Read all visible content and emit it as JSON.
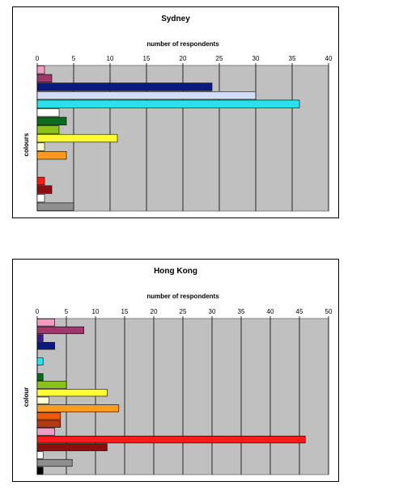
{
  "chart_data": [
    {
      "type": "bar",
      "orientation": "horizontal",
      "title": "Sydney",
      "xlabel": "number of respondents",
      "ylabel": "colours",
      "xlim": [
        0,
        40
      ],
      "ticks": [
        0,
        5,
        10,
        15,
        20,
        25,
        30,
        35,
        40
      ],
      "grid": true,
      "legend": "none",
      "bars": [
        {
          "color": "#f29ac2",
          "value": 1
        },
        {
          "color": "#a0386e",
          "value": 2
        },
        {
          "color": "#0b1a80",
          "value": 24
        },
        {
          "color": "#d2ddf5",
          "value": 30
        },
        {
          "color": "#29e0ec",
          "value": 36
        },
        {
          "color": "#ffffff",
          "value": 3
        },
        {
          "color": "#0c6b1c",
          "value": 4
        },
        {
          "color": "#88c21a",
          "value": 3
        },
        {
          "color": "#ffff33",
          "value": 11
        },
        {
          "color": "#ffffcc",
          "value": 1
        },
        {
          "color": "#ff9a1a",
          "value": 4
        },
        {
          "color": null,
          "value": 0
        },
        {
          "color": null,
          "value": 0
        },
        {
          "color": "#ff1a1a",
          "value": 1
        },
        {
          "color": "#8c0f0f",
          "value": 2
        },
        {
          "color": "#ffffff",
          "value": 1
        },
        {
          "color": "#8f8f8f",
          "value": 5
        }
      ]
    },
    {
      "type": "bar",
      "orientation": "horizontal",
      "title": "Hong Kong",
      "xlabel": "number of respondents",
      "ylabel": "colour",
      "xlim": [
        0,
        50
      ],
      "ticks": [
        0,
        5,
        10,
        15,
        20,
        25,
        30,
        35,
        40,
        45,
        50
      ],
      "grid": true,
      "legend": "none",
      "bars": [
        {
          "color": "#f29ac2",
          "value": 3
        },
        {
          "color": "#a0386e",
          "value": 8
        },
        {
          "color": "#3a1a8c",
          "value": 1
        },
        {
          "color": "#0b1a80",
          "value": 3
        },
        {
          "color": null,
          "value": 0
        },
        {
          "color": "#29e0ec",
          "value": 1
        },
        {
          "color": null,
          "value": 0
        },
        {
          "color": "#0c6b1c",
          "value": 1
        },
        {
          "color": "#88c21a",
          "value": 5
        },
        {
          "color": "#ffff33",
          "value": 12
        },
        {
          "color": "#ffffcc",
          "value": 2
        },
        {
          "color": "#ff9a1a",
          "value": 14
        },
        {
          "color": "#f25a0a",
          "value": 4
        },
        {
          "color": "#b33a12",
          "value": 4
        },
        {
          "color": "#f29ac2",
          "value": 3
        },
        {
          "color": "#ff1a1a",
          "value": 46
        },
        {
          "color": "#8c0f0f",
          "value": 12
        },
        {
          "color": "#ffffff",
          "value": 1
        },
        {
          "color": "#8f8f8f",
          "value": 6
        },
        {
          "color": "#000000",
          "value": 1
        }
      ]
    }
  ]
}
